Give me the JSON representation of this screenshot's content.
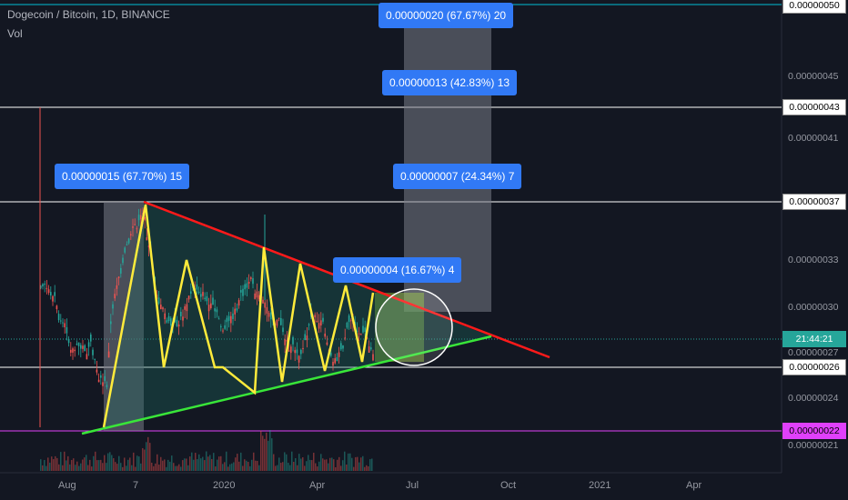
{
  "header": {
    "title": "Dogecoin / Bitcoin, 1D, BINANCE",
    "sub": "Vol"
  },
  "chart_data": {
    "type": "candlestick",
    "title": "Dogecoin / Bitcoin, 1D, BINANCE",
    "x_ticks": [
      "Aug",
      "7",
      "2020",
      "Apr",
      "Jul",
      "Oct",
      "2021",
      "Apr"
    ],
    "y_ticks": [
      "0.00000045",
      "0.00000041",
      "0.00000033",
      "0.00000030",
      "0.00000027",
      "0.00000024",
      "0.00000021"
    ],
    "ylim": [
      2e-07,
      5e-07
    ],
    "price_scale": "log",
    "horizontal_levels": [
      {
        "label": "0.00000050",
        "color": "#00bcd4"
      },
      {
        "label": "0.00000043",
        "color": "#ffffff"
      },
      {
        "label": "0.00000037",
        "color": "#ffffff"
      },
      {
        "label": "0.00000026",
        "color": "#ffffff"
      },
      {
        "label": "0.00000022",
        "color": "#e040fb"
      }
    ],
    "current_price_label": "21:44:21",
    "annotations": [
      {
        "text": "0.00000020 (67.67%) 20"
      },
      {
        "text": "0.00000013 (42.83%) 13"
      },
      {
        "text": "0.00000007 (24.34%) 7"
      },
      {
        "text": "0.00000015 (67.70%) 15"
      },
      {
        "text": "0.00000004 (16.67%) 4"
      }
    ],
    "pattern": "symmetrical triangle",
    "trendlines": [
      {
        "name": "resistance",
        "color": "#ff1a1a"
      },
      {
        "name": "support",
        "color": "#39e639"
      }
    ],
    "zigzag_color": "#ffeb3b",
    "grid": false,
    "legend": "none"
  }
}
